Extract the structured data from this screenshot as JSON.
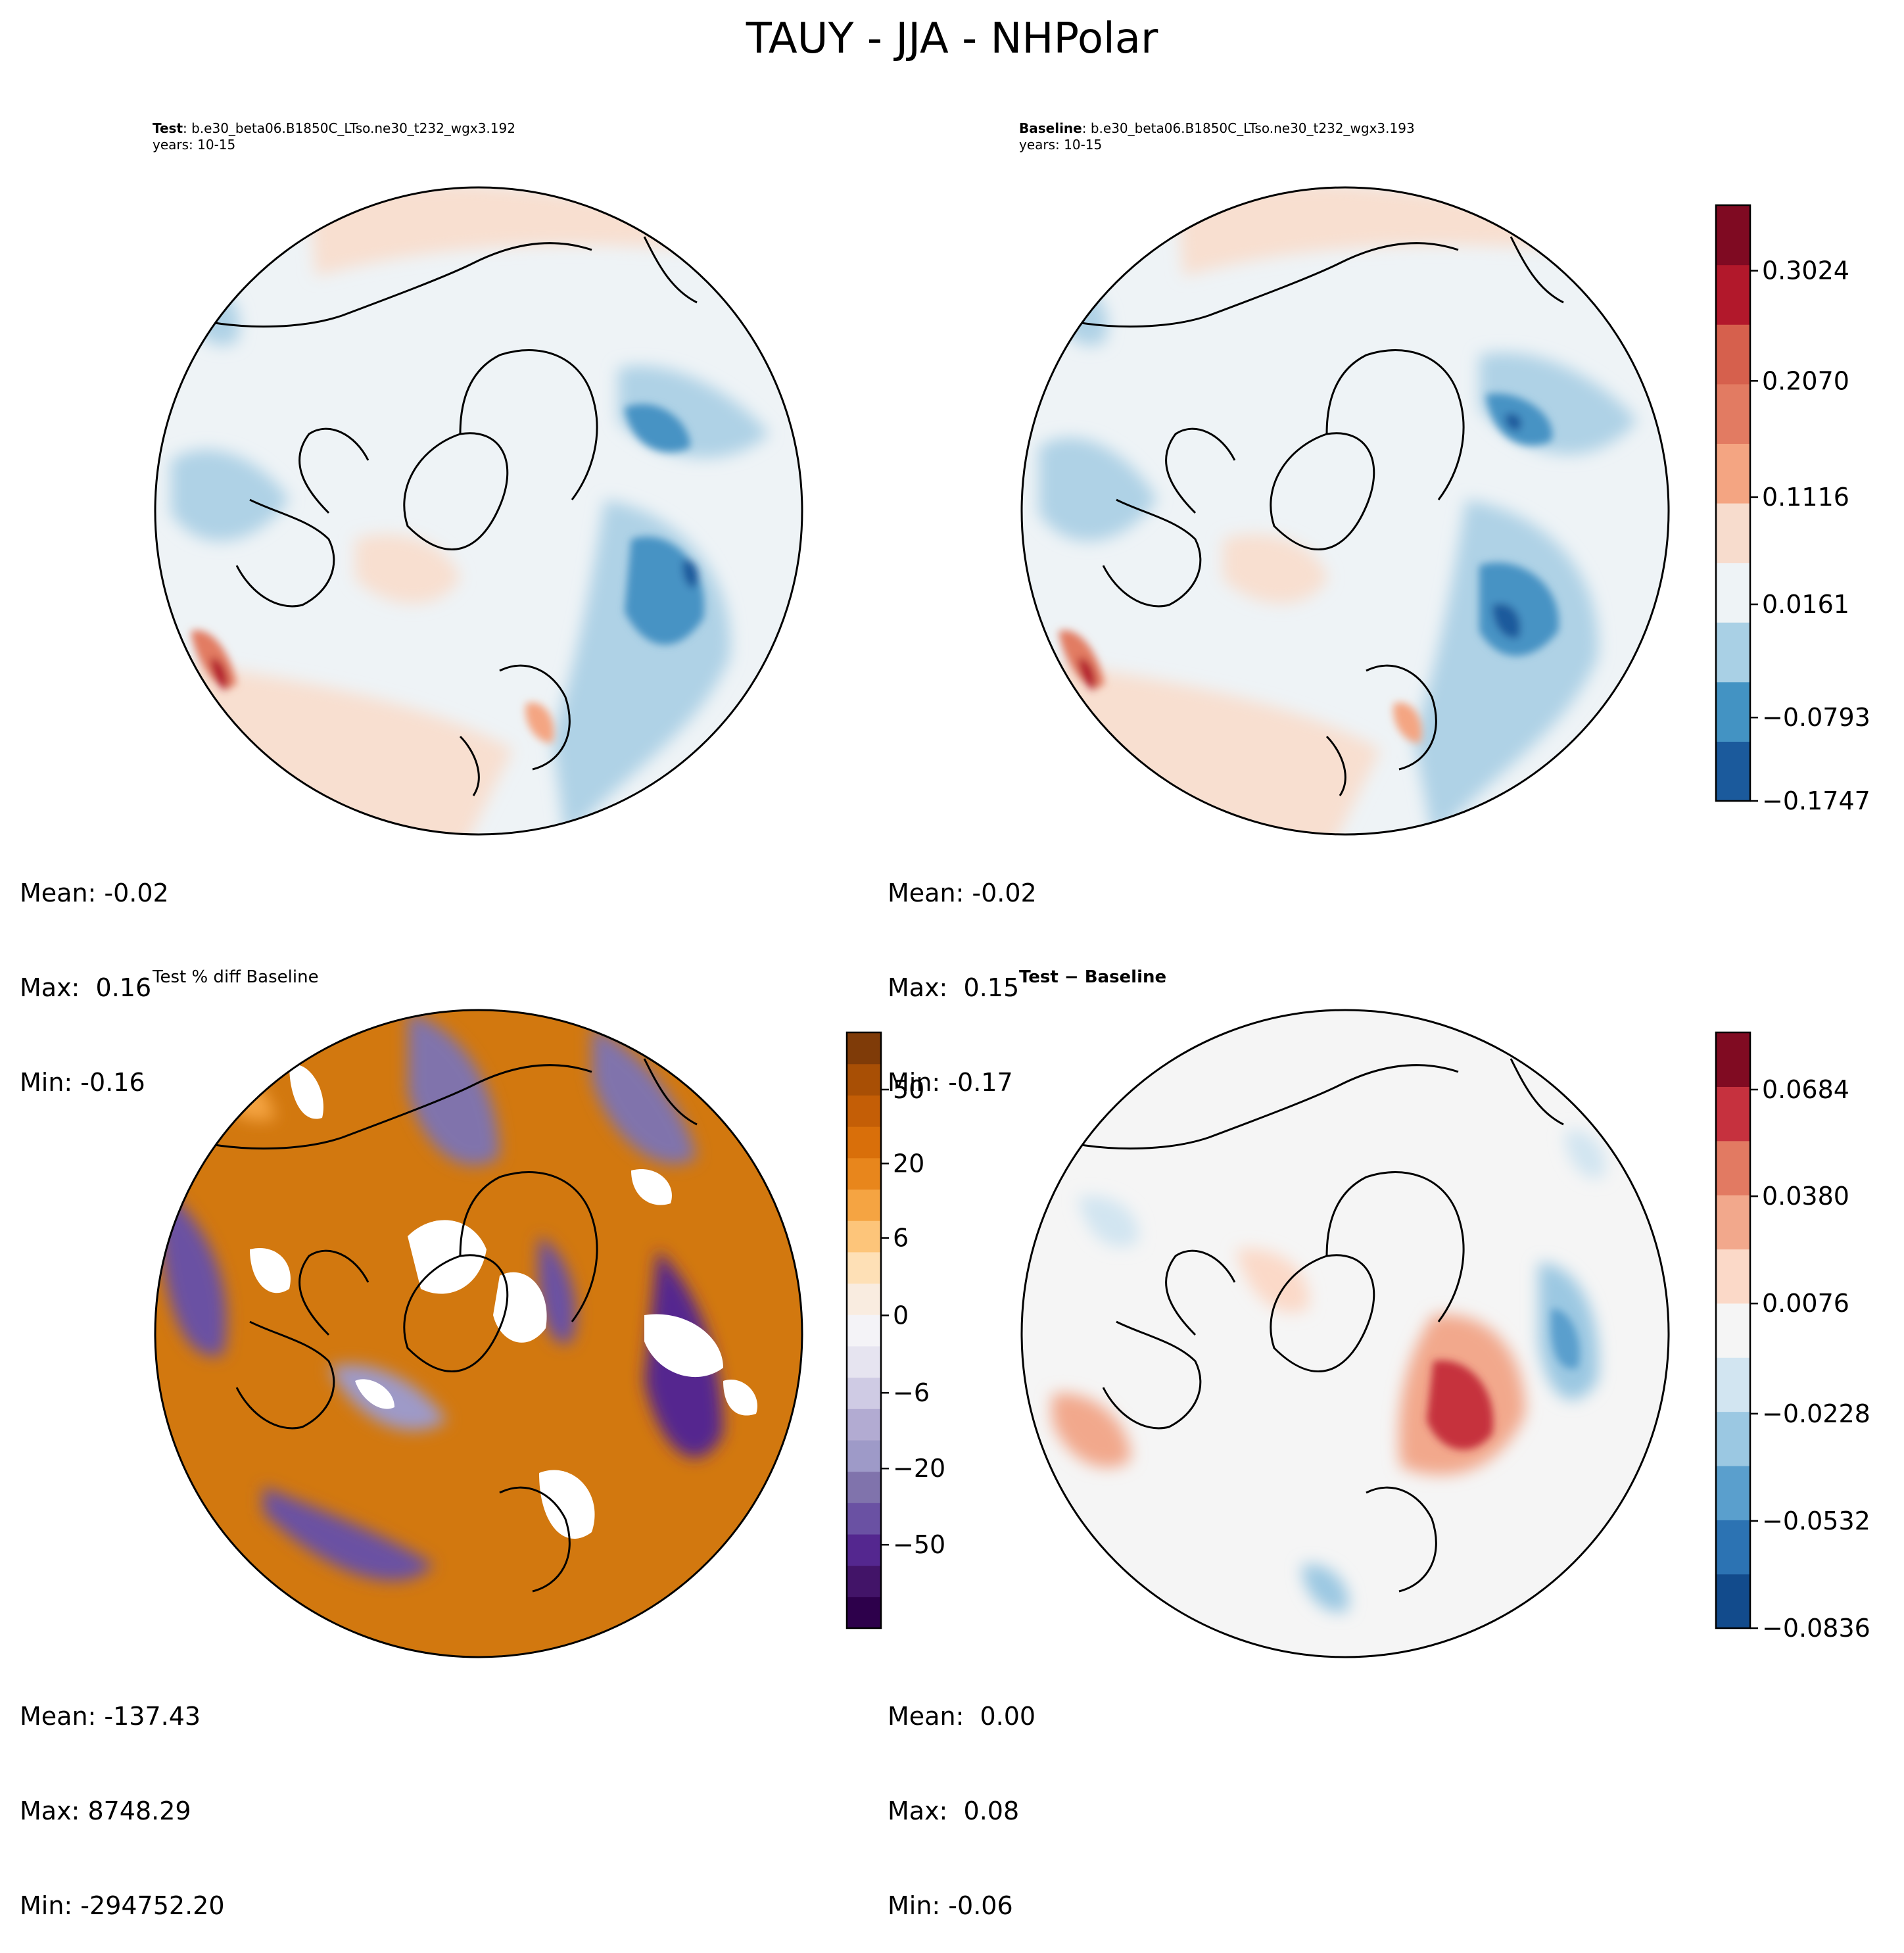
{
  "figure_title": "TAUY - JJA - NHPolar",
  "panels": [
    {
      "id": "test",
      "title_bold": "Test",
      "title_rest": ": b.e30_beta06.B1850C_LTso.ne30_t232_wgx3.192",
      "subtitle": "years: 10-15",
      "stats": {
        "mean": "Mean: -0.02",
        "max": "Max:  0.16",
        "min": "Min: -0.16"
      }
    },
    {
      "id": "baseline",
      "title_bold": "Baseline",
      "title_rest": ": b.e30_beta06.B1850C_LTso.ne30_t232_wgx3.193",
      "subtitle": "years: 10-15",
      "stats": {
        "mean": "Mean: -0.02",
        "max": "Max:  0.15",
        "min": "Min: -0.17"
      }
    },
    {
      "id": "pctdiff",
      "title_bold": "",
      "title_rest": "Test % diff Baseline",
      "subtitle": "",
      "stats": {
        "mean": "Mean: -137.43",
        "max": "Max: 8748.29",
        "min": "Min: -294752.20"
      }
    },
    {
      "id": "diff",
      "title_bold": "Test − Baseline",
      "title_rest": "",
      "subtitle": "",
      "stats": {
        "mean": "Mean:  0.00",
        "max": "Max:  0.08",
        "min": "Min: -0.06"
      }
    }
  ],
  "colorbars": {
    "field": {
      "ticks": [
        "0.3024",
        "0.2070",
        "0.1116",
        "0.0161",
        "−0.0793",
        "−0.1747"
      ],
      "colors": [
        "#1b5a9c",
        "#4393c3",
        "#a9d0e5",
        "#eef3f6",
        "#f7dccd",
        "#f4a582",
        "#e27b62",
        "#d6604d",
        "#b2182b",
        "#7f0a22"
      ]
    },
    "pct": {
      "ticks": [
        "50",
        "20",
        "6",
        "0",
        "−6",
        "−20",
        "−50"
      ],
      "colors": [
        "#2d004b",
        "#421468",
        "#54278f",
        "#6a51a3",
        "#8073ac",
        "#9e9ac8",
        "#b2abd2",
        "#cfcbe4",
        "#e6e4f0",
        "#f4f3f7",
        "#f9ece0",
        "#fee0b6",
        "#fdc57a",
        "#f5a442",
        "#e8861c",
        "#d96f0a",
        "#c45e06",
        "#a84f05",
        "#7f3b08"
      ]
    },
    "diff": {
      "ticks": [
        "0.0684",
        "0.0380",
        "0.0076",
        "−0.0228",
        "−0.0532",
        "−0.0836"
      ],
      "colors": [
        "#124b8c",
        "#2c73b3",
        "#5a9fcd",
        "#9bc8e2",
        "#d2e5f1",
        "#f5f5f5",
        "#fbd9c8",
        "#f2a88c",
        "#e27a62",
        "#c6313e",
        "#800b22"
      ]
    }
  }
}
